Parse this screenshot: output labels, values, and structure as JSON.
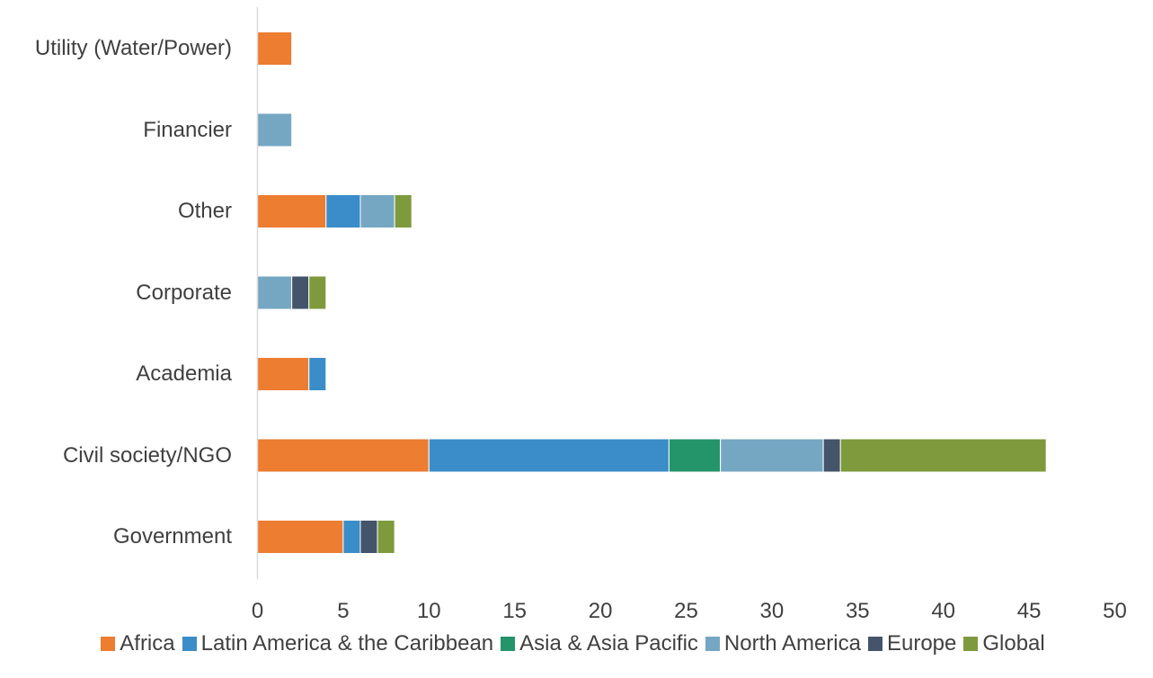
{
  "chart_data": {
    "type": "bar",
    "orientation": "horizontal",
    "stacked": true,
    "categories": [
      "Government",
      "Civil society/NGO",
      "Academia",
      "Corporate",
      "Other",
      "Financier",
      "Utility (Water/Power)"
    ],
    "series": [
      {
        "name": "Africa",
        "color": "#ED7D31",
        "values": [
          5,
          10,
          3,
          0,
          4,
          0,
          2
        ]
      },
      {
        "name": "Latin America & the Caribbean",
        "color": "#3A8DC8",
        "values": [
          1,
          14,
          1,
          0,
          2,
          0,
          0
        ]
      },
      {
        "name": "Asia & Asia Pacific",
        "color": "#24946A",
        "values": [
          0,
          3,
          0,
          0,
          0,
          0,
          0
        ]
      },
      {
        "name": "North America",
        "color": "#75A7C2",
        "values": [
          0,
          6,
          0,
          2,
          2,
          2,
          0
        ]
      },
      {
        "name": "Europe",
        "color": "#44546A",
        "values": [
          1,
          1,
          0,
          1,
          0,
          0,
          0
        ]
      },
      {
        "name": "Global",
        "color": "#7E9A3D",
        "values": [
          1,
          12,
          0,
          1,
          1,
          0,
          0
        ]
      }
    ],
    "xlim": [
      0,
      50
    ],
    "xticks": [
      "0",
      "5",
      "10",
      "15",
      "20",
      "25",
      "30",
      "35",
      "40",
      "45",
      "50"
    ],
    "legend_position": "bottom",
    "grid": false
  }
}
